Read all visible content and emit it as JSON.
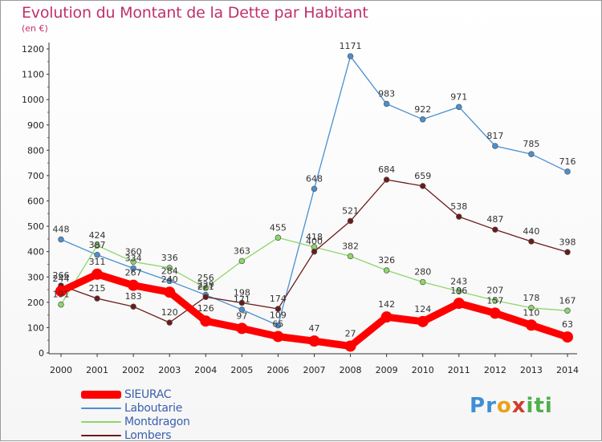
{
  "header": {
    "title": "Evolution du Montant de la Dette par Habitant",
    "subtitle": "(en €)"
  },
  "logo": {
    "text": "Proxiti",
    "letters": [
      {
        "ch": "P",
        "color": "#3d8fd6"
      },
      {
        "ch": "r",
        "color": "#3d8fd6"
      },
      {
        "ch": "o",
        "color": "#e8a21e"
      },
      {
        "ch": "x",
        "color": "#d23c2a"
      },
      {
        "ch": "i",
        "color": "#4fb04a"
      },
      {
        "ch": "t",
        "color": "#4fb04a"
      },
      {
        "ch": "i",
        "color": "#4fb04a"
      }
    ]
  },
  "chart_data": {
    "type": "line",
    "title": "Evolution du Montant de la Dette par Habitant",
    "subtitle": "(en €)",
    "xlabel": "",
    "ylabel": "",
    "x": [
      "2000",
      "2001",
      "2002",
      "2003",
      "2004",
      "2005",
      "2006",
      "2007",
      "2008",
      "2009",
      "2010",
      "2011",
      "2012",
      "2013",
      "2014"
    ],
    "yticks": [
      0,
      100,
      200,
      300,
      400,
      500,
      600,
      700,
      800,
      900,
      1000,
      1100,
      1200
    ],
    "ylim": [
      0,
      1200
    ],
    "grid": false,
    "legend_position": "bottom-left",
    "series": [
      {
        "name": "SIEURAC",
        "color": "#ff0000",
        "values": [
          244,
          311,
          267,
          240,
          126,
          97,
          65,
          47,
          27,
          142,
          124,
          196,
          157,
          110,
          63
        ],
        "labels": [
          "244",
          "311",
          "267",
          "240",
          "126",
          "97",
          "65",
          "47",
          "27",
          "142",
          "124",
          "196",
          "157",
          "110",
          "63"
        ]
      },
      {
        "name": "Laboutarie",
        "color": "#4a90d0",
        "values": [
          448,
          387,
          334,
          284,
          229,
          171,
          109,
          648,
          1171,
          983,
          922,
          971,
          817,
          785,
          716
        ],
        "labels": [
          "448",
          "387",
          "334",
          "284",
          "229",
          "171",
          "109",
          "648",
          "1171",
          "983",
          "922",
          "971",
          "817",
          "785",
          "716"
        ]
      },
      {
        "name": "Montdragon",
        "color": "#8ed66b",
        "values": [
          191,
          424,
          360,
          336,
          256,
          363,
          455,
          418,
          382,
          326,
          280,
          243,
          207,
          178,
          167
        ],
        "labels": [
          "191",
          "424",
          "360",
          "336",
          "256",
          "363",
          "455",
          "418",
          "382",
          "326",
          "280",
          "243",
          "207",
          "178",
          "167"
        ]
      },
      {
        "name": "Lombers",
        "color": "#6b1a1a",
        "values": [
          266,
          215,
          183,
          120,
          221,
          198,
          174,
          400,
          521,
          684,
          659,
          538,
          487,
          440,
          398
        ],
        "labels": [
          "266",
          "215",
          "183",
          "120",
          "221",
          "198",
          "174",
          "400",
          "521",
          "684",
          "659",
          "538",
          "487",
          "440",
          "398"
        ]
      }
    ]
  }
}
